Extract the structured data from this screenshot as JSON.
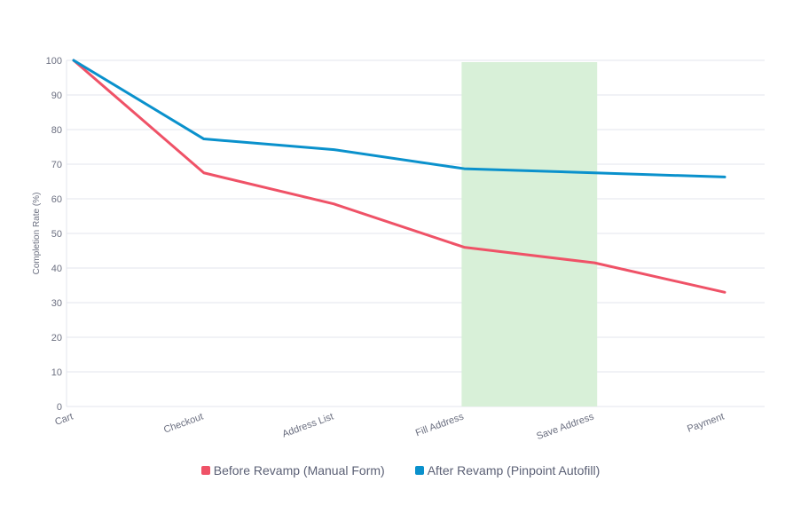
{
  "chart_data": {
    "type": "line",
    "ylabel": "Completion Rate (%)",
    "ylim": [
      0,
      100
    ],
    "yticks": [
      0,
      10,
      20,
      30,
      40,
      50,
      60,
      70,
      80,
      90,
      100
    ],
    "categories": [
      "Cart",
      "Checkout",
      "Address List",
      "Fill Address",
      "Save Address",
      "Payment"
    ],
    "grid": true,
    "highlight": {
      "from": "Fill Address",
      "to": "Save Address",
      "color": "#d8f0d8"
    },
    "series": [
      {
        "name": "Before Revamp (Manual Form)",
        "color": "#ef5267",
        "values": [
          100,
          67.5,
          58.5,
          46,
          41.5,
          33
        ]
      },
      {
        "name": "After Revamp (Pinpoint Autofill)",
        "color": "#0a91cc",
        "values": [
          100,
          77.3,
          74.2,
          68.7,
          67.5,
          66.3
        ]
      }
    ],
    "legend_position": "bottom"
  }
}
